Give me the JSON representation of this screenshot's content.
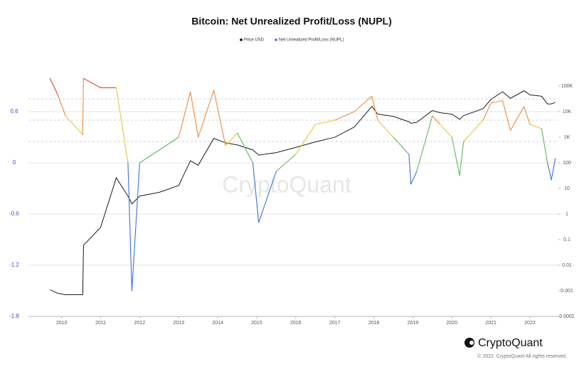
{
  "chart_data": {
    "type": "line",
    "title": "Bitcoin: Net Unrealized Profit/Loss (NUPL)",
    "watermark": "CryptoQuant",
    "brand": "CryptoQuant",
    "copyright": "© 2022. CryptoQuant All rights reserved.",
    "x": [
      2009.7,
      2009.9,
      2010.1,
      2010.54,
      2010.56,
      2011.0,
      2011.4,
      2011.7,
      2011.8,
      2012.0,
      2012.5,
      2013.0,
      2013.3,
      2013.5,
      2013.9,
      2014.2,
      2014.5,
      2014.9,
      2015.05,
      2015.5,
      2016.0,
      2016.5,
      2017.0,
      2017.5,
      2017.95,
      2018.1,
      2018.5,
      2018.9,
      2018.95,
      2019.1,
      2019.5,
      2019.7,
      2020.0,
      2020.2,
      2020.3,
      2020.8,
      2021.0,
      2021.3,
      2021.5,
      2021.85,
      2022.0,
      2022.3,
      2022.45,
      2022.55,
      2022.65
    ],
    "series": [
      {
        "name": "Price USD",
        "color": "#000000",
        "axis": "y2",
        "values": [
          0.0011,
          0.0008,
          0.0007,
          0.0007,
          0.06,
          0.3,
          26,
          5,
          2.5,
          5,
          7,
          13,
          120,
          80,
          900,
          600,
          500,
          320,
          200,
          250,
          400,
          650,
          1000,
          2500,
          16000,
          8000,
          6500,
          4000,
          3500,
          3800,
          11000,
          9000,
          8000,
          5000,
          7000,
          13000,
          30000,
          60000,
          33000,
          65000,
          45000,
          40000,
          20000,
          20000,
          23000
        ]
      },
      {
        "name": "Net Unrealized Profit/Loss (NUPL)",
        "color": "#3d6fe0",
        "values": [
          0.99,
          0.8,
          0.55,
          0.33,
          0.99,
          0.88,
          0.88,
          0.0,
          -1.5,
          0.0,
          0.15,
          0.3,
          0.83,
          0.3,
          0.85,
          0.2,
          0.35,
          0.0,
          -0.7,
          -0.1,
          0.1,
          0.45,
          0.5,
          0.6,
          0.78,
          0.5,
          0.3,
          0.1,
          -0.25,
          -0.1,
          0.55,
          0.45,
          0.3,
          -0.15,
          0.25,
          0.5,
          0.7,
          0.73,
          0.38,
          0.66,
          0.45,
          0.4,
          0.0,
          -0.2,
          0.05
        ],
        "zones": [
          {
            "from": 0.75,
            "color": "#e3412f"
          },
          {
            "from": 0.5,
            "color": "#f08a3c"
          },
          {
            "from": 0.25,
            "color": "#e9c53a"
          },
          {
            "from": 0,
            "color": "#5cb85c"
          },
          {
            "from": -1.8,
            "color": "#3d6fe0"
          }
        ]
      }
    ],
    "xlim": [
      2009.15,
      2022.73
    ],
    "xticks": [
      2010,
      2011,
      2012,
      2013,
      2014,
      2015,
      2016,
      2017,
      2018,
      2019,
      2020,
      2021,
      2022
    ],
    "ylim": [
      -1.8,
      1.2
    ],
    "yticks": [
      0.6,
      0,
      -0.6,
      -1.2,
      -1.8
    ],
    "y2lim": [
      0.0001,
      1000000
    ],
    "y2ticks": [
      0.0001,
      0.001,
      0.01,
      0.1,
      1,
      10,
      100,
      {
        "value": 1000,
        "label": "1K"
      },
      {
        "value": 10000,
        "label": "10K"
      },
      {
        "value": 100000,
        "label": "100K"
      }
    ],
    "y2log": true,
    "grid": true
  }
}
